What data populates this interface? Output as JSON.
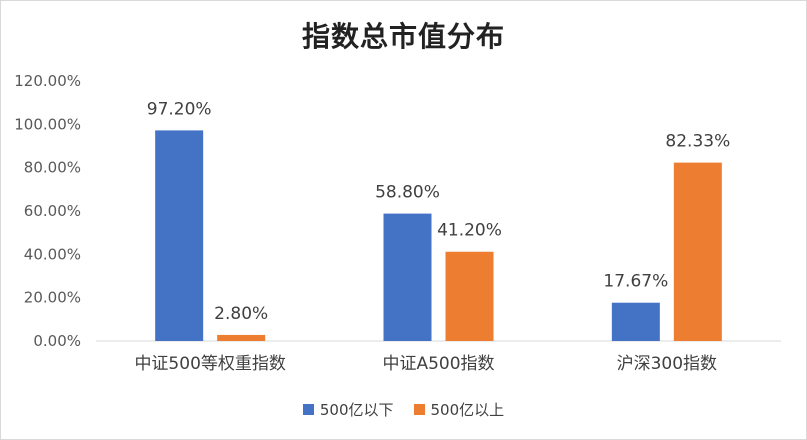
{
  "chart_data": {
    "type": "bar",
    "title": "指数总市值分布",
    "xlabel": "",
    "ylabel": "",
    "ylim": [
      0,
      120
    ],
    "yticks": [
      "0.00%",
      "20.00%",
      "40.00%",
      "60.00%",
      "80.00%",
      "100.00%",
      "120.00%"
    ],
    "categories": [
      "中证500等权重指数",
      "中证A500指数",
      "沪深300指数"
    ],
    "series": [
      {
        "name": "500亿以下",
        "color": "#4472C4",
        "values": [
          97.2,
          58.8,
          17.67
        ],
        "labels": [
          "97.20%",
          "58.80%",
          "17.67%"
        ]
      },
      {
        "name": "500亿以上",
        "color": "#ED7D31",
        "values": [
          2.8,
          41.2,
          82.33
        ],
        "labels": [
          "2.80%",
          "41.20%",
          "82.33%"
        ]
      }
    ],
    "grid": false,
    "legend_position": "bottom"
  }
}
